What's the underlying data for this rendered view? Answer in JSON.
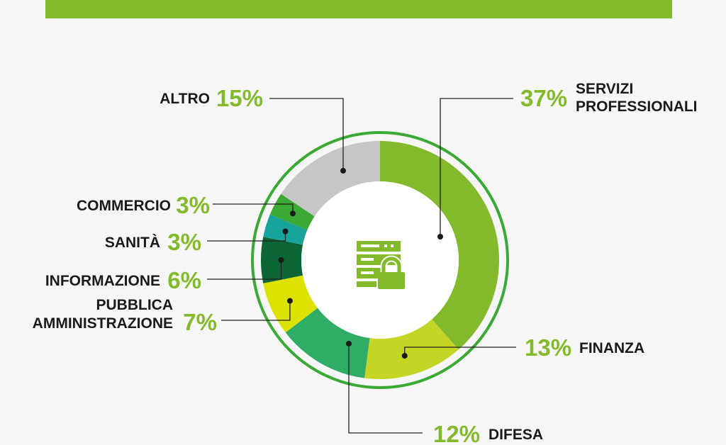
{
  "chart_data": {
    "type": "pie",
    "title": "",
    "slices": [
      {
        "label": "SERVIZI PROFESSIONALI",
        "label_lines": [
          "SERVIZI",
          "PROFESSIONALI"
        ],
        "value": 37,
        "display": "37%",
        "color": "#82ba2c"
      },
      {
        "label": "FINANZA",
        "label_lines": [
          "FINANZA"
        ],
        "value": 13,
        "display": "13%",
        "color": "#c4d526"
      },
      {
        "label": "DIFESA",
        "label_lines": [
          "DIFESA"
        ],
        "value": 12,
        "display": "12%",
        "color": "#2fac66"
      },
      {
        "label": "PUBBLICA AMMINISTRAZIONE",
        "label_lines": [
          "PUBBLICA",
          "AMMINISTRAZIONE"
        ],
        "value": 7,
        "display": "7%",
        "color": "#dde200"
      },
      {
        "label": "INFORMAZIONE",
        "label_lines": [
          "INFORMAZIONE"
        ],
        "value": 6,
        "display": "6%",
        "color": "#0b6534"
      },
      {
        "label": "SANITÀ",
        "label_lines": [
          "SANITÀ"
        ],
        "value": 3,
        "display": "3%",
        "color": "#17a59b"
      },
      {
        "label": "COMMERCIO",
        "label_lines": [
          "COMMERCIO"
        ],
        "value": 3,
        "display": "3%",
        "color": "#3aaa35"
      },
      {
        "label": "ALTRO",
        "label_lines": [
          "ALTRO"
        ],
        "value": 15,
        "display": "15%",
        "color": "#c6c6c6"
      }
    ],
    "percent_color": "#82ba2c",
    "accent_color": "#3aaa35",
    "center_icon": "server-lock-icon"
  }
}
